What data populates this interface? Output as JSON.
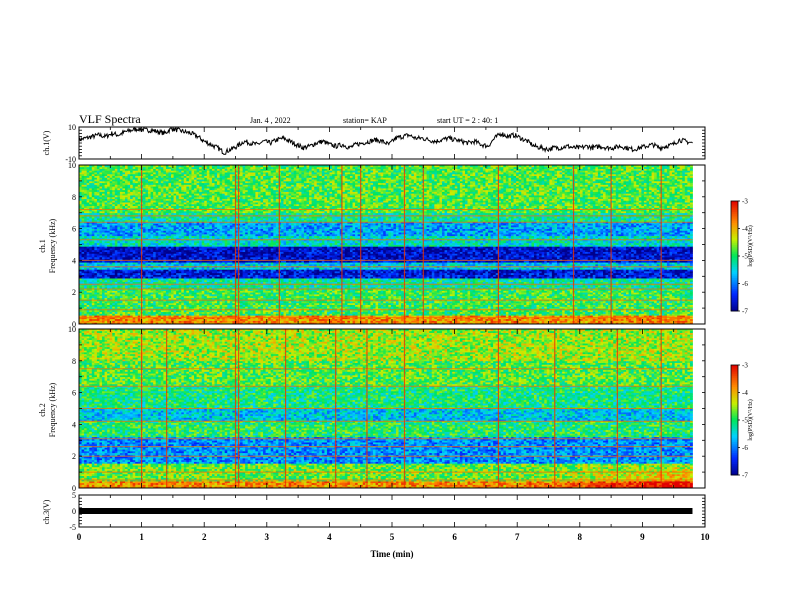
{
  "header": {
    "title": "VLF Spectra",
    "date": "Jan. 4 , 2022",
    "station": "station= KAP",
    "start": "start  UT =   2 : 40: 1"
  },
  "chart_data": [
    {
      "type": "line",
      "name": "ch1-waveform",
      "ylabel": "ch.1(V)",
      "ylim": [
        -10,
        10
      ],
      "yticks": [
        "10",
        "-10"
      ],
      "xlim": [
        0,
        10
      ],
      "level_profile": [
        2,
        3,
        4,
        5,
        4,
        6,
        5,
        7,
        8,
        9,
        8,
        8,
        7,
        6,
        9,
        8,
        7,
        6,
        4,
        1,
        -1,
        -3,
        -6,
        -4,
        -2,
        1,
        0,
        -1,
        1,
        0,
        2,
        3,
        1,
        -1,
        -3,
        -2,
        0,
        1,
        -1,
        -2,
        -1,
        -3,
        -1,
        0,
        1,
        2,
        1,
        -1,
        3,
        4,
        5,
        3,
        3,
        2,
        1,
        2,
        3,
        2,
        1,
        0,
        1,
        -1,
        -2,
        3,
        6,
        4,
        5,
        3,
        1,
        -2,
        -3,
        -4,
        -3,
        -3,
        -2,
        -3,
        -3,
        -2,
        -3,
        -2,
        -3,
        -3,
        -2,
        -3,
        -4,
        -3,
        -2,
        -1,
        -3,
        -2,
        -1,
        2,
        1,
        0
      ],
      "end_x": 9.8
    },
    {
      "type": "heatmap",
      "name": "ch1-spectrogram",
      "ylabel": "ch.1",
      "ylabel2": "Frequency (kHz)",
      "ylim": [
        0,
        10
      ],
      "yticks": [
        "0",
        "2",
        "4",
        "6",
        "8",
        "10"
      ],
      "xlim": [
        0,
        10
      ],
      "end_x": 9.8,
      "colorbar": {
        "min": -7,
        "max": -3,
        "ticks": [
          "-3",
          "-4",
          "-5",
          "-6",
          "-7"
        ],
        "label": "log(PSD)(V²/Hz)"
      },
      "bands": [
        {
          "f0": 0.0,
          "f1": 0.6,
          "v": -3.8
        },
        {
          "f0": 0.6,
          "f1": 2.2,
          "v": -4.9
        },
        {
          "f0": 2.2,
          "f1": 2.9,
          "v": -5.2
        },
        {
          "f0": 2.9,
          "f1": 3.5,
          "v": -6.6
        },
        {
          "f0": 3.5,
          "f1": 3.9,
          "v": -5.6
        },
        {
          "f0": 3.9,
          "f1": 4.9,
          "v": -6.7
        },
        {
          "f0": 4.9,
          "f1": 5.6,
          "v": -5.4
        },
        {
          "f0": 5.6,
          "f1": 6.4,
          "v": -5.8
        },
        {
          "f0": 6.4,
          "f1": 7.0,
          "v": -5.2
        },
        {
          "f0": 7.0,
          "f1": 10.0,
          "v": -4.8
        }
      ],
      "lines_freq": [
        0.4,
        0.9,
        1.5,
        2.2,
        2.5,
        3.6,
        4.0,
        5.3,
        6.4,
        6.8,
        7.2
      ],
      "spikes_time": [
        1.0,
        2.5,
        2.55,
        3.2,
        4.2,
        4.5,
        5.2,
        5.5,
        6.7,
        7.9,
        8.5,
        9.3
      ]
    },
    {
      "type": "heatmap",
      "name": "ch2-spectrogram",
      "ylabel": "ch.2",
      "ylabel2": "Frequency (kHz)",
      "ylim": [
        0,
        10
      ],
      "yticks": [
        "0",
        "2",
        "4",
        "6",
        "8",
        "10"
      ],
      "xlim": [
        0,
        10
      ],
      "end_x": 9.8,
      "colorbar": {
        "min": -7,
        "max": -3,
        "ticks": [
          "-3",
          "-4",
          "-5",
          "-6",
          "-7"
        ],
        "label": "log(PSD)(V²/Hz)"
      },
      "bands": [
        {
          "f0": 0.0,
          "f1": 0.5,
          "v": -3.8
        },
        {
          "f0": 0.5,
          "f1": 1.6,
          "v": -4.7
        },
        {
          "f0": 1.6,
          "f1": 3.2,
          "v": -5.9
        },
        {
          "f0": 3.2,
          "f1": 4.2,
          "v": -5.0
        },
        {
          "f0": 4.2,
          "f1": 5.0,
          "v": -5.6
        },
        {
          "f0": 5.0,
          "f1": 6.4,
          "v": -5.1
        },
        {
          "f0": 6.4,
          "f1": 8.0,
          "v": -4.8
        },
        {
          "f0": 8.0,
          "f1": 10.0,
          "v": -4.5
        }
      ],
      "lines_freq": [
        0.5,
        1.0,
        2.0,
        2.6,
        3.1,
        4.2,
        5.0,
        6.4,
        7.5
      ],
      "spikes_time": [
        1.0,
        1.4,
        2.5,
        2.55,
        3.3,
        4.1,
        4.6,
        5.2,
        6.7,
        7.6,
        8.6,
        9.3
      ]
    },
    {
      "type": "line",
      "name": "ch3-waveform",
      "ylabel": "ch.3(V)",
      "ylim": [
        -5,
        5
      ],
      "yticks": [
        "5",
        "0",
        "-5"
      ],
      "xlim": [
        0,
        10
      ],
      "xlabel": "Time (min)",
      "xticks": [
        "0",
        "1",
        "2",
        "3",
        "4",
        "5",
        "6",
        "7",
        "8",
        "9",
        "10"
      ],
      "level": 0,
      "end_x": 9.8
    }
  ]
}
